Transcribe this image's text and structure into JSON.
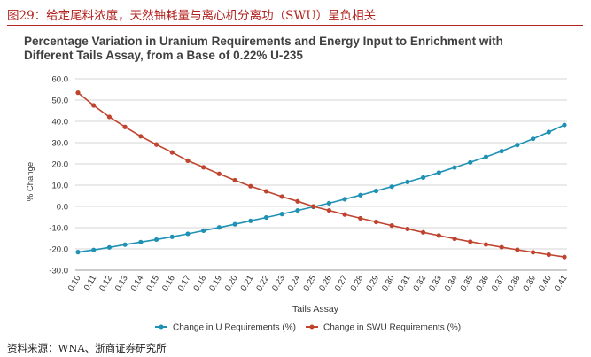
{
  "caption": "图29：给定尾料浓度，天然铀耗量与离心机分离功（SWU）呈负相关",
  "source": "资料来源：WNA、浙商证券研究所",
  "colors": {
    "u_series": "#1e91b4",
    "swu_series": "#c0432e",
    "caption": "#b2231f"
  },
  "chart_data": {
    "type": "line",
    "title": "Percentage Variation in Uranium Requirements and Energy Input to Enrichment with Different Tails Assay, from a Base of 0.22% U-235",
    "title_lines": [
      "Percentage Variation in Uranium Requirements and Energy Input to Enrichment with",
      "Different Tails Assay, from a Base of 0.22% U-235"
    ],
    "xlabel": "Tails Assay",
    "ylabel": "% Change",
    "ylim": [
      -30,
      60
    ],
    "yticks": [
      "60.0",
      "50.0",
      "40.0",
      "30.0",
      "20.0",
      "10.0",
      "0.0",
      "-10.0",
      "-20.0",
      "-30.0"
    ],
    "grid": true,
    "legend_position": "bottom",
    "x": [
      "0.10",
      "0.11",
      "0.12",
      "0.13",
      "0.14",
      "0.15",
      "0.16",
      "0.17",
      "0.18",
      "0.19",
      "0.20",
      "0.21",
      "0.22",
      "0.23",
      "0.24",
      "0.25",
      "0.26",
      "0.27",
      "0.28",
      "0.29",
      "0.30",
      "0.31",
      "0.32",
      "0.33",
      "0.34",
      "0.35",
      "0.36",
      "0.37",
      "0.38",
      "0.39",
      "0.40",
      "0.41"
    ],
    "series": [
      {
        "name": "Change in U Requirements (%)",
        "color": "#1e91b4",
        "values": [
          -21.5,
          -20.5,
          -19.3,
          -18.0,
          -16.8,
          -15.6,
          -14.3,
          -12.9,
          -11.4,
          -9.9,
          -8.4,
          -6.8,
          -5.2,
          -3.6,
          -1.9,
          -0.2,
          1.5,
          3.4,
          5.3,
          7.3,
          9.3,
          11.5,
          13.6,
          15.9,
          18.3,
          20.7,
          23.3,
          26.0,
          28.9,
          31.8,
          35.0,
          38.3
        ]
      },
      {
        "name": "Change in SWU Requirements (%)",
        "color": "#c0432e",
        "values": [
          53.5,
          47.5,
          42.1,
          37.4,
          33.0,
          29.1,
          25.4,
          21.5,
          18.4,
          15.3,
          12.3,
          9.5,
          7.1,
          4.6,
          2.4,
          0.0,
          -1.9,
          -3.8,
          -5.6,
          -7.3,
          -9.0,
          -10.6,
          -12.2,
          -13.7,
          -15.2,
          -16.6,
          -17.9,
          -19.2,
          -20.4,
          -21.6,
          -22.7,
          -23.8
        ]
      }
    ]
  }
}
